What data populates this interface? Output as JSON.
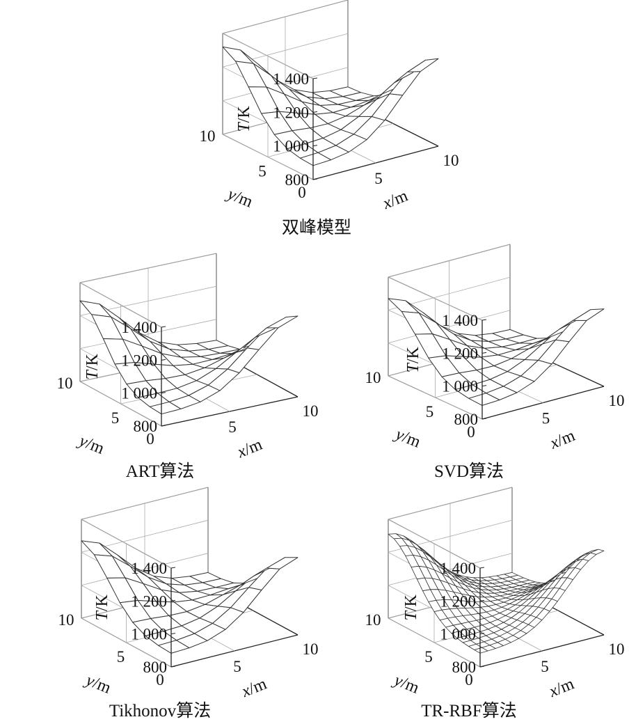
{
  "chart_data": [
    {
      "type": "surface",
      "title": "双峰模型",
      "zlabel_var": "T",
      "zlabel_unit": "/K",
      "xlabel_var": "x",
      "xlabel_unit": "/m",
      "ylabel_var": "y",
      "ylabel_unit": "/m",
      "zticks": [
        "800",
        "1 000",
        "1 200",
        "1 400"
      ],
      "xticks": [
        "5",
        "10"
      ],
      "yticks": [
        "0",
        "5",
        "10"
      ],
      "xlim": [
        0,
        10
      ],
      "ylim": [
        0,
        10
      ],
      "zlim": [
        800,
        1400
      ],
      "grid_n": 7,
      "peaks": [
        {
          "x": 0,
          "y": 10,
          "z": 1320
        },
        {
          "x": 10,
          "y": 0,
          "z": 1320
        }
      ],
      "floor": 880,
      "edge": 950
    },
    {
      "type": "surface",
      "title": "ART算法",
      "zlabel_var": "T",
      "zlabel_unit": "/K",
      "xlabel_var": "x",
      "xlabel_unit": "/m",
      "ylabel_var": "y",
      "ylabel_unit": "/m",
      "zticks": [
        "800",
        "1 000",
        "1 200",
        "1 400"
      ],
      "xticks": [
        "5",
        "10"
      ],
      "yticks": [
        "0",
        "5",
        "10"
      ],
      "xlim": [
        0,
        10
      ],
      "ylim": [
        0,
        10
      ],
      "zlim": [
        800,
        1400
      ],
      "grid_n": 7,
      "peaks": [
        {
          "x": 0,
          "y": 10,
          "z": 1290
        },
        {
          "x": 10,
          "y": 0,
          "z": 1290
        }
      ],
      "floor": 870,
      "edge": 960
    },
    {
      "type": "surface",
      "title": "SVD算法",
      "zlabel_var": "T",
      "zlabel_unit": "/K",
      "xlabel_var": "x",
      "xlabel_unit": "/m",
      "ylabel_var": "y",
      "ylabel_unit": "/m",
      "zticks": [
        "800",
        "1 000",
        "1 200",
        "1 400"
      ],
      "xticks": [
        "5",
        "10"
      ],
      "yticks": [
        "0",
        "5",
        "10"
      ],
      "xlim": [
        0,
        10
      ],
      "ylim": [
        0,
        10
      ],
      "zlim": [
        800,
        1400
      ],
      "grid_n": 7,
      "peaks": [
        {
          "x": 0,
          "y": 10,
          "z": 1270
        },
        {
          "x": 10,
          "y": 0,
          "z": 1270
        }
      ],
      "floor": 880,
      "edge": 960
    },
    {
      "type": "surface",
      "title": "Tikhonov算法",
      "zlabel_var": "T",
      "zlabel_unit": "/K",
      "xlabel_var": "x",
      "xlabel_unit": "/m",
      "ylabel_var": "y",
      "ylabel_unit": "/m",
      "zticks": [
        "800",
        "1 000",
        "1 200",
        "1 400"
      ],
      "xticks": [
        "5",
        "10"
      ],
      "yticks": [
        "0",
        "5",
        "10"
      ],
      "xlim": [
        0,
        10
      ],
      "ylim": [
        0,
        10
      ],
      "zlim": [
        800,
        1400
      ],
      "grid_n": 7,
      "peaks": [
        {
          "x": 0,
          "y": 10,
          "z": 1270
        },
        {
          "x": 10,
          "y": 0,
          "z": 1270
        }
      ],
      "floor": 880,
      "edge": 955
    },
    {
      "type": "surface",
      "title": "TR-RBF算法",
      "zlabel_var": "T",
      "zlabel_unit": "/K",
      "xlabel_var": "x",
      "xlabel_unit": "/m",
      "ylabel_var": "y",
      "ylabel_unit": "/m",
      "zticks": [
        "800",
        "1 000",
        "1 200",
        "1 400"
      ],
      "xticks": [
        "5",
        "10"
      ],
      "yticks": [
        "0",
        "5",
        "10"
      ],
      "xlim": [
        0,
        10
      ],
      "ylim": [
        0,
        10
      ],
      "zlim": [
        800,
        1400
      ],
      "grid_n": 16,
      "peaks": [
        {
          "x": 0,
          "y": 10,
          "z": 1310
        },
        {
          "x": 10,
          "y": 0,
          "z": 1310
        }
      ],
      "floor": 880,
      "edge": 950
    }
  ]
}
